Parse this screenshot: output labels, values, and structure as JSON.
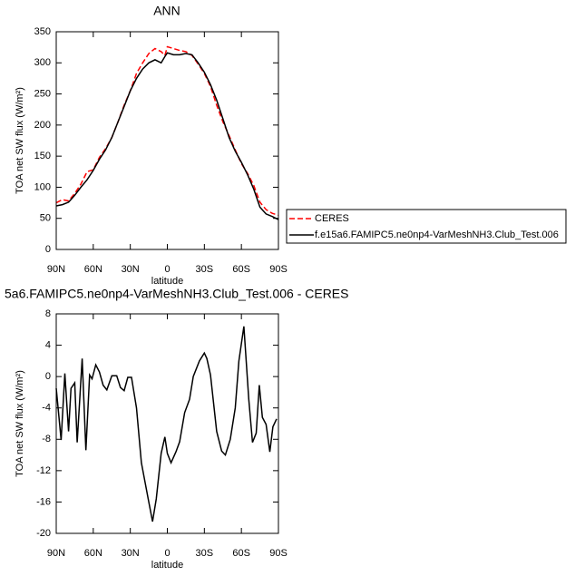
{
  "chart_data": [
    {
      "type": "line",
      "title": "ANN",
      "x_label": "latitude",
      "y_label": "TOA net SW flux (W/m²)",
      "x": [
        90,
        85,
        80,
        75,
        70,
        65,
        60,
        55,
        50,
        45,
        40,
        35,
        30,
        25,
        20,
        15,
        10,
        5,
        2,
        0,
        -5,
        -10,
        -15,
        -20,
        -25,
        -30,
        -35,
        -40,
        -45,
        -50,
        -55,
        -60,
        -65,
        -70,
        -75,
        -80,
        -85,
        -90
      ],
      "series": [
        {
          "name": "CERES",
          "color": "#ff0000",
          "dashed": true,
          "values": [
            75,
            80,
            78,
            90,
            105,
            125,
            128,
            148,
            162,
            180,
            205,
            232,
            255,
            283,
            300,
            315,
            323,
            318,
            312,
            326,
            323,
            320,
            318,
            312,
            298,
            283,
            262,
            232,
            205,
            183,
            160,
            138,
            122,
            103,
            76,
            64,
            58,
            55
          ]
        },
        {
          "name": "f.e15a6.FAMIPC5.ne0np4-VarMeshNH3.Club_Test.006",
          "color": "#000000",
          "dashed": false,
          "values": [
            70,
            72,
            76,
            87,
            100,
            112,
            127,
            145,
            160,
            180,
            205,
            230,
            255,
            275,
            290,
            300,
            305,
            300,
            310,
            316,
            313,
            313,
            315,
            313,
            300,
            285,
            265,
            240,
            210,
            180,
            158,
            140,
            120,
            97,
            68,
            57,
            53,
            48
          ]
        }
      ],
      "xlim": [
        90,
        -90
      ],
      "xticks": [
        {
          "value": 90,
          "label": "90N"
        },
        {
          "value": 60,
          "label": "60N"
        },
        {
          "value": 30,
          "label": "30N"
        },
        0,
        {
          "value": -30,
          "label": "30S"
        },
        {
          "value": -60,
          "label": "60S"
        },
        {
          "value": -90,
          "label": "90S"
        }
      ],
      "ylim": [
        0,
        350
      ],
      "yticks": [
        0,
        50,
        100,
        150,
        200,
        250,
        300,
        350
      ],
      "legend": "right"
    },
    {
      "type": "line",
      "title": "5a6.FAMIPC5.ne0np4-VarMeshNH3.Club_Test.006 - CERES",
      "x_label": "latitude",
      "y_label": "TOA net SW flux (W/m²)",
      "x": [
        90,
        86,
        83,
        80,
        78,
        75,
        73,
        69,
        66,
        63,
        61,
        58,
        55,
        52,
        49,
        45,
        41,
        38,
        35,
        32,
        29,
        25,
        21,
        15.5,
        12,
        9,
        5,
        2,
        0,
        -3,
        -7,
        -10,
        -14,
        -18,
        -21,
        -26,
        -30,
        -32,
        -35,
        -40,
        -44,
        -47,
        -51,
        -55,
        -58,
        -62,
        -66,
        -69,
        -72,
        -74.5,
        -77,
        -80,
        -83,
        -85.5,
        -88.5
      ],
      "values": [
        -1.5,
        -8.1,
        0.4,
        -7,
        -1.5,
        -0.8,
        -8.4,
        2.3,
        -9.4,
        0.2,
        -0.3,
        1.5,
        0.6,
        -1.1,
        -1.7,
        0.1,
        0.1,
        -1.4,
        -1.8,
        -0.1,
        -0.1,
        -4,
        -11,
        -15.6,
        -18.5,
        -15.6,
        -9.8,
        -7.7,
        -9.8,
        -11,
        -9.6,
        -8.3,
        -4.6,
        -2.9,
        0,
        2,
        3,
        2.3,
        0.2,
        -7,
        -9.5,
        -10,
        -8,
        -4,
        2,
        6.4,
        -2.9,
        -8.4,
        -7.2,
        -1.1,
        -5.2,
        -6.1,
        -9.6,
        -6.4,
        -5.4
      ],
      "color": "#000000",
      "xlim": [
        90,
        -90
      ],
      "xticks": [
        {
          "value": 90,
          "label": "90N"
        },
        {
          "value": 60,
          "label": "60N"
        },
        {
          "value": 30,
          "label": "30N"
        },
        0,
        {
          "value": -30,
          "label": "30S"
        },
        {
          "value": -60,
          "label": "60S"
        },
        {
          "value": -90,
          "label": "90S"
        }
      ],
      "ylim": [
        -20,
        8
      ],
      "yticks": [
        -20,
        -16,
        -12,
        -8,
        -4,
        0,
        4,
        8
      ]
    }
  ]
}
